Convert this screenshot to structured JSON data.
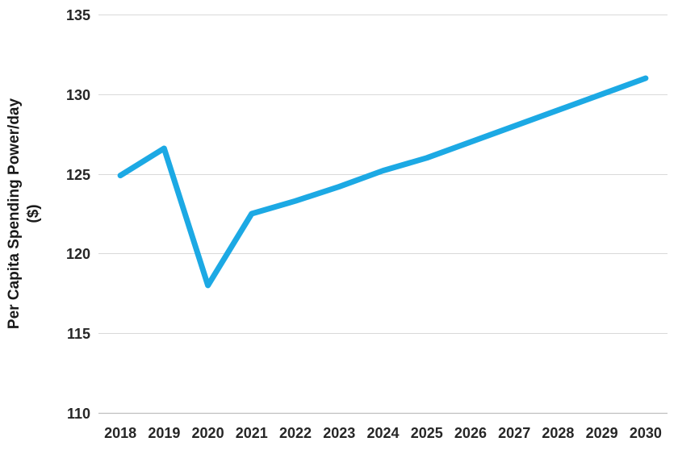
{
  "chart_data": {
    "type": "line",
    "title": "",
    "xlabel": "",
    "ylabel": "Per Capita Spending Power/day ($)",
    "ylabel_lines": [
      "Per Capita Spending Power/day",
      "($)"
    ],
    "categories": [
      "2018",
      "2019",
      "2020",
      "2021",
      "2022",
      "2023",
      "2024",
      "2025",
      "2026",
      "2027",
      "2028",
      "2029",
      "2030"
    ],
    "series": [
      {
        "name": "Per Capita Spending Power/day ($)",
        "values": [
          124.9,
          126.6,
          118.0,
          122.5,
          123.3,
          124.2,
          125.2,
          126.0,
          127.0,
          128.0,
          129.0,
          130.0,
          131.0
        ]
      }
    ],
    "yticks": [
      110,
      115,
      120,
      125,
      130,
      135
    ],
    "ylim": [
      110,
      135
    ],
    "grid": true,
    "legend_position": "none",
    "colors": {
      "line": "#1CA9E4",
      "gridline": "#D9D9D9",
      "axis_line": "#BFBFBF",
      "tick_text": "#262626",
      "title_text": "#1a1a1a",
      "background": "#FFFFFF"
    }
  }
}
